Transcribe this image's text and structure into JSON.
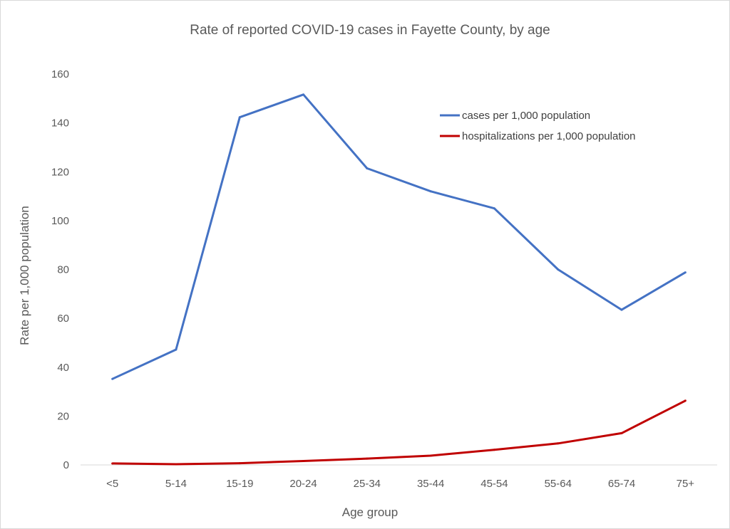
{
  "chart_data": {
    "type": "line",
    "title": "Rate of reported COVID-19 cases in Fayette County, by age",
    "xlabel": "Age group",
    "ylabel": "Rate per 1,000 population",
    "categories": [
      "<5",
      "5-14",
      "15-19",
      "20-24",
      "25-34",
      "35-44",
      "45-54",
      "55-64",
      "65-74",
      "75+"
    ],
    "ylim": [
      0,
      160
    ],
    "yticks": [
      0,
      20,
      40,
      60,
      80,
      100,
      120,
      140,
      160
    ],
    "grid": false,
    "legend_position": "top-right",
    "series": [
      {
        "name": "cases per 1,000 population",
        "color": "#4472C4",
        "values": [
          35.2,
          47.2,
          142.3,
          151.6,
          121.4,
          112.0,
          105.0,
          80.0,
          63.5,
          78.8
        ]
      },
      {
        "name": "hospitalizations per 1,000 population",
        "color": "#C00000",
        "values": [
          0.6,
          0.3,
          0.7,
          1.6,
          2.6,
          3.8,
          6.2,
          8.8,
          13.0,
          26.3
        ]
      }
    ]
  }
}
